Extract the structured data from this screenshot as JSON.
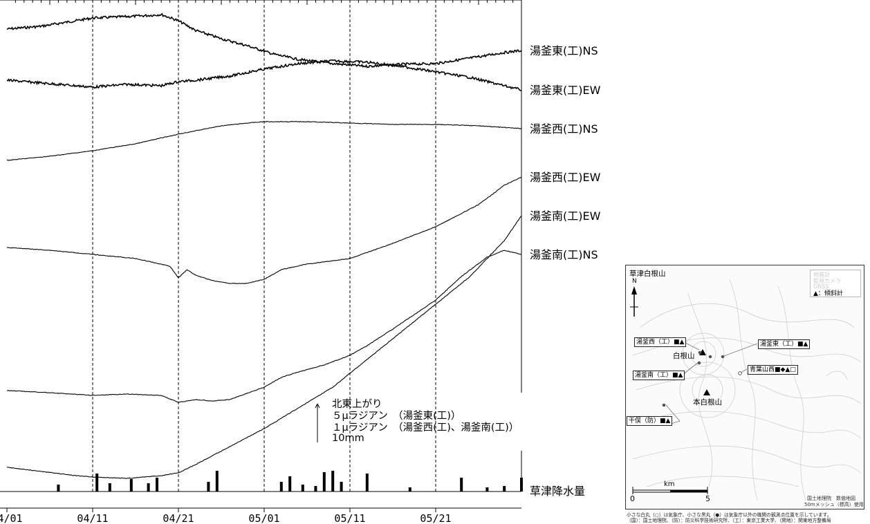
{
  "chart_data": {
    "type": "line",
    "title": "",
    "x_tick_labels": [
      "04/01",
      "04/11",
      "04/21",
      "05/01",
      "05/11",
      "05/21"
    ],
    "x_range_days": [
      0,
      60
    ],
    "series": [
      {
        "name": "湯釜東(工)NS",
        "weight": "bold",
        "points": [
          [
            0,
            42
          ],
          [
            4,
            38
          ],
          [
            8,
            30
          ],
          [
            10,
            26
          ],
          [
            14,
            24
          ],
          [
            17,
            22
          ],
          [
            18,
            21
          ],
          [
            20,
            30
          ],
          [
            22,
            44
          ],
          [
            25,
            56
          ],
          [
            28,
            66
          ],
          [
            31,
            78
          ],
          [
            34,
            86
          ],
          [
            38,
            92
          ],
          [
            42,
            96
          ],
          [
            46,
            93
          ],
          [
            50,
            92
          ],
          [
            52,
            88
          ],
          [
            54,
            84
          ],
          [
            56,
            80
          ],
          [
            58,
            76
          ],
          [
            60,
            73
          ]
        ]
      },
      {
        "name": "湯釜東(工)EW",
        "weight": "bold",
        "points": [
          [
            0,
            116
          ],
          [
            4,
            120
          ],
          [
            8,
            124
          ],
          [
            10,
            126
          ],
          [
            14,
            122
          ],
          [
            18,
            124
          ],
          [
            20,
            118
          ],
          [
            22,
            116
          ],
          [
            26,
            110
          ],
          [
            30,
            100
          ],
          [
            34,
            92
          ],
          [
            38,
            88
          ],
          [
            42,
            90
          ],
          [
            46,
            96
          ],
          [
            50,
            104
          ],
          [
            54,
            112
          ],
          [
            58,
            124
          ],
          [
            60,
            130
          ]
        ]
      },
      {
        "name": "湯釜西(工)NS",
        "weight": "normal",
        "points": [
          [
            0,
            232
          ],
          [
            5,
            226
          ],
          [
            10,
            218
          ],
          [
            15,
            208
          ],
          [
            20,
            194
          ],
          [
            25,
            182
          ],
          [
            28,
            178
          ],
          [
            30,
            176
          ],
          [
            35,
            176
          ],
          [
            40,
            178
          ],
          [
            45,
            180
          ],
          [
            50,
            180
          ],
          [
            55,
            182
          ],
          [
            60,
            186
          ]
        ]
      },
      {
        "name": "湯釜西(工)EW",
        "weight": "normal",
        "points": [
          [
            0,
            358
          ],
          [
            5,
            362
          ],
          [
            10,
            368
          ],
          [
            15,
            374
          ],
          [
            19,
            385
          ],
          [
            20,
            402
          ],
          [
            21,
            390
          ],
          [
            22,
            398
          ],
          [
            24,
            406
          ],
          [
            26,
            410
          ],
          [
            28,
            410
          ],
          [
            30,
            404
          ],
          [
            32,
            390
          ],
          [
            35,
            382
          ],
          [
            40,
            374
          ],
          [
            45,
            352
          ],
          [
            50,
            328
          ],
          [
            55,
            296
          ],
          [
            58,
            268
          ],
          [
            60,
            256
          ]
        ]
      },
      {
        "name": "湯釜南(工)NS",
        "weight": "normal",
        "points": [
          [
            0,
            565
          ],
          [
            5,
            568
          ],
          [
            10,
            572
          ],
          [
            14,
            570
          ],
          [
            18,
            572
          ],
          [
            20,
            582
          ],
          [
            22,
            578
          ],
          [
            24,
            580
          ],
          [
            26,
            578
          ],
          [
            30,
            560
          ],
          [
            32,
            546
          ],
          [
            34,
            538
          ],
          [
            37,
            528
          ],
          [
            40,
            514
          ],
          [
            42,
            500
          ],
          [
            45,
            476
          ],
          [
            50,
            434
          ],
          [
            53,
            400
          ],
          [
            56,
            372
          ],
          [
            58,
            362
          ],
          [
            60,
            368
          ]
        ]
      },
      {
        "name": "湯釜南(工)EW",
        "weight": "normal",
        "points": [
          [
            0,
            676
          ],
          [
            4,
            682
          ],
          [
            8,
            688
          ],
          [
            10,
            690
          ],
          [
            14,
            692
          ],
          [
            18,
            688
          ],
          [
            20,
            684
          ],
          [
            22,
            672
          ],
          [
            26,
            646
          ],
          [
            30,
            620
          ],
          [
            34,
            590
          ],
          [
            38,
            560
          ],
          [
            42,
            520
          ],
          [
            46,
            480
          ],
          [
            50,
            440
          ],
          [
            54,
            400
          ],
          [
            58,
            348
          ],
          [
            60,
            312
          ]
        ]
      }
    ],
    "precipitation": {
      "name": "草津降水量",
      "bars": [
        [
          6,
          10
        ],
        [
          10.5,
          26
        ],
        [
          12,
          12
        ],
        [
          14.5,
          18
        ],
        [
          16.5,
          12
        ],
        [
          17.5,
          20
        ],
        [
          23.5,
          14
        ],
        [
          24.5,
          30
        ],
        [
          32,
          14
        ],
        [
          33,
          22
        ],
        [
          34.5,
          10
        ],
        [
          36,
          8
        ],
        [
          37,
          28
        ],
        [
          38,
          30
        ],
        [
          39,
          14
        ],
        [
          42,
          26
        ],
        [
          47,
          6
        ],
        [
          53,
          20
        ],
        [
          56,
          6
        ],
        [
          58,
          8
        ],
        [
          60,
          20
        ]
      ]
    }
  },
  "scale_annotation": {
    "direction": "北東上がり",
    "line1": "５μラジアン　（湯釜東(工)）",
    "line2": "１μラジアン　（湯釜西(工)、湯釜南(工)）",
    "line3": "10mm"
  },
  "map": {
    "title": "草津白根山",
    "north": "N",
    "legend_tilt": "▲：傾斜計",
    "legend_faint": [
      "地震計",
      "監視カメラ",
      "GNSS"
    ],
    "stations": {
      "yugama_west": "湯釜西（工）■▲",
      "yugama_east": "湯釜東（工）■▲",
      "yugama_south": "湯釜南（工）■▲",
      "aobayama_west": "青葉山西■◆▲□",
      "chimata": "干俣（防）■▲"
    },
    "peaks": {
      "shirane": "白根山",
      "motoshirane": "本白根山"
    },
    "scale_unit": "km",
    "scale_zero": "0",
    "scale_five": "5",
    "credit_1": "国土地理院　数値地図",
    "credit_2": "50mメッシュ（標高）使用"
  },
  "footnote": {
    "line1": "小さな白丸（○）は気象庁、小さな黒丸（●）は気象庁以外の機関の観測点位置を示しています。",
    "line2": "（国）：国土地理院、（防）：防災科学技術研究所、（工）：東京工業大学、（関地）：関東地方整備局"
  }
}
